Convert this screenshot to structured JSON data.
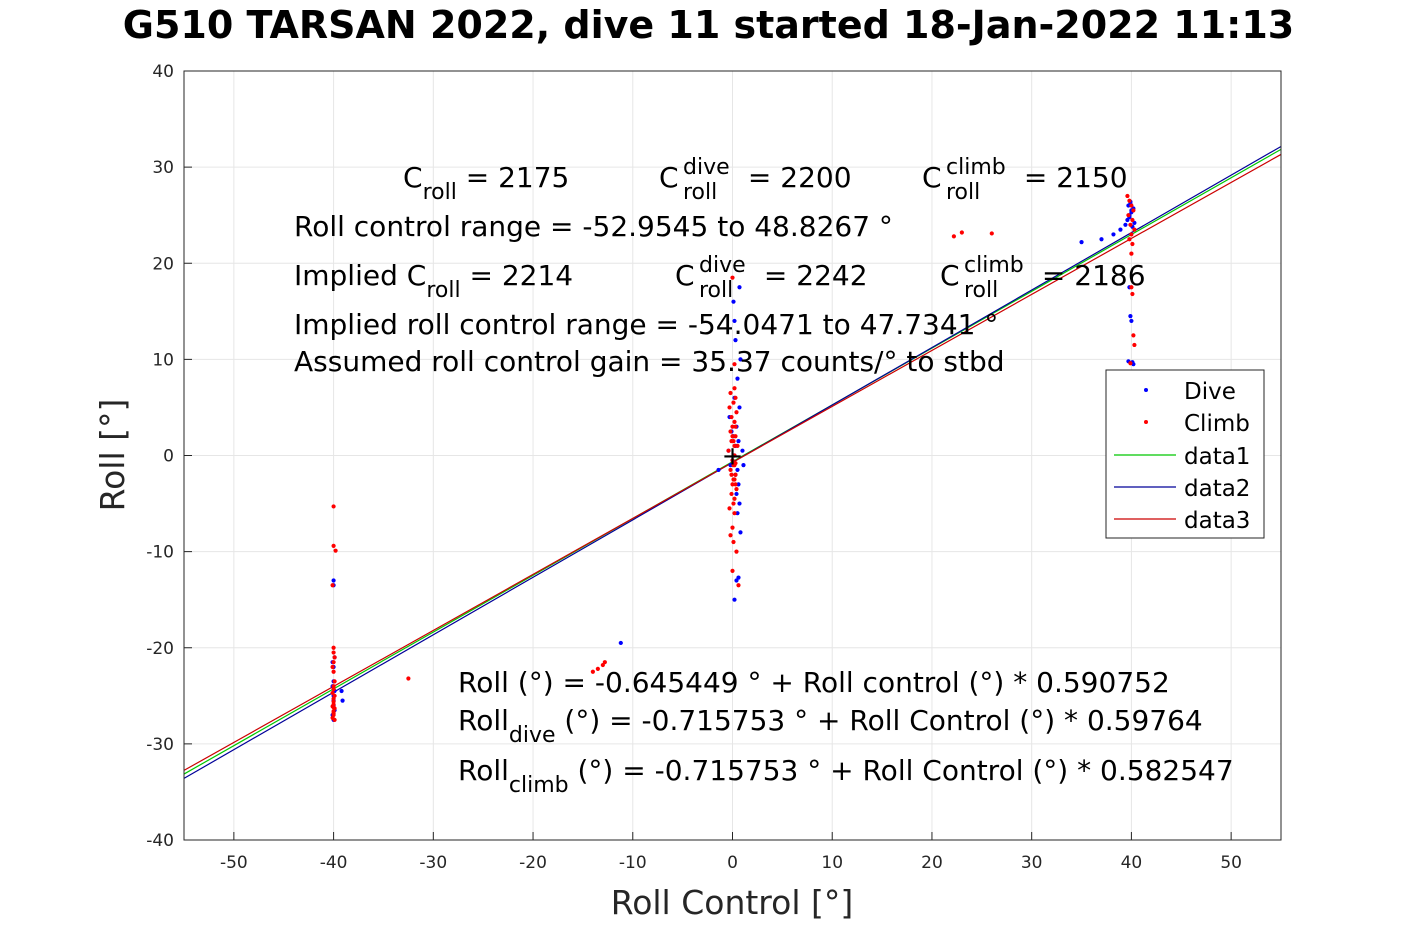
{
  "chart_data": {
    "type": "scatter",
    "title": "G510 TARSAN 2022, dive 11 started 18-Jan-2022 11:13",
    "xlabel": "Roll Control [°]",
    "ylabel": "Roll [°]",
    "xlim": [
      -55,
      55
    ],
    "ylim": [
      -40,
      40
    ],
    "xticks": [
      -50,
      -40,
      -30,
      -20,
      -10,
      0,
      10,
      20,
      30,
      40,
      50
    ],
    "yticks": [
      -40,
      -30,
      -20,
      -10,
      0,
      10,
      20,
      30,
      40
    ],
    "grid": true,
    "legend_position": "right",
    "series": [
      {
        "name": "Dive",
        "kind": "points",
        "color": "#0000ff",
        "x": [
          -40,
          -40,
          -39.9,
          -40.1,
          -40,
          -40,
          -40.1,
          -39.9,
          -40,
          -40,
          -40,
          -39.9,
          -40.1,
          -40,
          -39.2,
          -39.1,
          -11.2,
          0.2,
          0.4,
          0.6,
          0.8,
          0.5,
          0.7,
          0.4,
          0.6,
          0.3,
          0.5,
          -0.2,
          0,
          0.2,
          -0.4,
          0.3,
          0.6,
          0.1,
          -0.1,
          0.4,
          -0.3,
          0.7,
          1.0,
          1.1,
          -1.4,
          0.2,
          0.5,
          0.8,
          0.3,
          0.2,
          0.1,
          0.7,
          35,
          37,
          38.2,
          38.9,
          39.4,
          39.6,
          39.8,
          40,
          40.2,
          39.7,
          39.9,
          40.1,
          40.3,
          39.8,
          39.9,
          40,
          40.2,
          39.7,
          40.1,
          39.8,
          40,
          39.9
        ],
        "y": [
          -13,
          -13.5,
          -21,
          -21.5,
          -22,
          -23.5,
          -24,
          -24.5,
          -25,
          -25.5,
          -26,
          -26.5,
          -27,
          -27.5,
          -24.5,
          -25.5,
          -19.5,
          -15,
          -13,
          -12.7,
          -8,
          -6,
          -5,
          -4,
          -3,
          -2,
          -1.5,
          -1,
          -0.5,
          0,
          0.5,
          1,
          1.5,
          2,
          2.5,
          3,
          4,
          5,
          0.5,
          -1,
          -1.5,
          6,
          8,
          10,
          12,
          14,
          16,
          17.5,
          22.2,
          22.5,
          23,
          23.5,
          24,
          24.5,
          25,
          25.3,
          25.7,
          26,
          26.4,
          23.8,
          24.2,
          17.5,
          14.5,
          14,
          9.5,
          9.8,
          9.7,
          24.8,
          25.5,
          26.2
        ]
      },
      {
        "name": "Climb",
        "kind": "points",
        "color": "#ff0000",
        "x": [
          -40,
          -40,
          -39.8,
          -40.1,
          -40,
          -40,
          -39.9,
          -40,
          -40.1,
          -40,
          -39.9,
          -40,
          -40,
          -40.1,
          -39.9,
          -40,
          -40,
          -40,
          -40.1,
          -39.9,
          -40,
          -40,
          -40,
          -40.1,
          -39.9,
          -40,
          -32.5,
          -14,
          -13.5,
          -13,
          -12.8,
          0,
          0.2,
          -0.2,
          0.3,
          0.1,
          -0.3,
          0.4,
          -0.1,
          0.2,
          0,
          -0.2,
          0.3,
          0.1,
          0.5,
          -0.4,
          0.2,
          0,
          0.1,
          -0.2,
          0.3,
          0.2,
          0,
          0.4,
          -0.1,
          0.2,
          0.1,
          -0.3,
          0.3,
          0,
          0.2,
          0.1,
          0.2,
          -0.1,
          0.3,
          0.2,
          0,
          -0.2,
          0.1,
          0.4,
          0,
          0.6,
          0.2,
          0.1,
          -0.1,
          0.3,
          22.2,
          23,
          26,
          39.6,
          39.8,
          40,
          40.2,
          39.7,
          40.1,
          39.9,
          40.3,
          40,
          39.8,
          40.1,
          40,
          40.2,
          40.3,
          40.1,
          39.9,
          40
        ],
        "y": [
          -5.3,
          -9.4,
          -9.9,
          -13.5,
          -20,
          -20.5,
          -21,
          -21.5,
          -22,
          -22.5,
          -23.5,
          -24,
          -24.3,
          -24.7,
          -25,
          -25.3,
          -25.6,
          -25.9,
          -26.1,
          -26.3,
          -26.6,
          -26.8,
          -27,
          -27.3,
          -27.5,
          -26.2,
          -23.2,
          -22.5,
          -22.2,
          -21.8,
          -21.5,
          18.5,
          9.5,
          6.5,
          6,
          5.5,
          5,
          4.5,
          4,
          3.5,
          3,
          2.5,
          2,
          1.5,
          1,
          0.5,
          0,
          -0.5,
          -1,
          -1.5,
          -2,
          -2.5,
          -3,
          -3.5,
          -4,
          -4.5,
          -5,
          -5.5,
          3,
          2,
          1,
          0,
          -1,
          -2,
          -3,
          -6,
          -7.5,
          -8.3,
          -9,
          -10,
          -12,
          -13.5,
          7,
          -2.5,
          1.5,
          -0.8,
          22.8,
          23.2,
          23.1,
          27,
          26.5,
          26,
          25.5,
          25,
          24.5,
          24,
          23.5,
          23,
          22.5,
          22,
          21,
          12.5,
          11.5,
          16.8,
          9.6,
          17.5
        ]
      },
      {
        "name": "data1",
        "kind": "line",
        "color": "#00c800",
        "x": [
          -55,
          55
        ],
        "y": [
          -33.14,
          31.85
        ]
      },
      {
        "name": "data2",
        "kind": "line",
        "color": "#000099",
        "x": [
          -55,
          55
        ],
        "y": [
          -33.59,
          32.15
        ]
      },
      {
        "name": "data3",
        "kind": "line",
        "color": "#cc0000",
        "x": [
          -55,
          55
        ],
        "y": [
          -32.76,
          31.32
        ]
      }
    ],
    "center_marker": {
      "label": "+",
      "x": 0,
      "y": 0
    },
    "annotations": {
      "top": {
        "c_roll": {
          "base": "C",
          "sub": "roll",
          "value": " = 2175"
        },
        "c_roll_dive": {
          "base": "C",
          "sup": "dive",
          "sub": "roll",
          "value": " = 2200"
        },
        "c_roll_climb": {
          "base": "C",
          "sup": "climb",
          "sub": "roll",
          "value": " = 2150"
        },
        "range_line": "Roll control range = -52.9545 to 48.8267 °",
        "implied_c_roll": {
          "base": "Implied C",
          "sub": "roll",
          "value": " = 2214"
        },
        "implied_c_roll_dive": {
          "base": "C",
          "sup": "dive",
          "sub": "roll",
          "value": " = 2242"
        },
        "implied_c_roll_climb": {
          "base": "C",
          "sup": "climb",
          "sub": "roll",
          "value": " = 2186"
        },
        "implied_range_line": "Implied roll control range = -54.0471 to 47.7341 °",
        "gain_line": "Assumed roll control gain = 35.37 counts/° to stbd"
      },
      "bottom": {
        "fit_line": "Roll (°) = -0.645449 ° + Roll control (°) * 0.590752",
        "fit_dive": {
          "base": "Roll",
          "sub": "dive",
          "rest": " (°) = -0.715753 ° + Roll Control (°) * 0.59764"
        },
        "fit_climb": {
          "base": "Roll",
          "sub": "climb",
          "rest": " (°) = -0.715753 ° + Roll Control (°) * 0.582547"
        }
      }
    }
  }
}
